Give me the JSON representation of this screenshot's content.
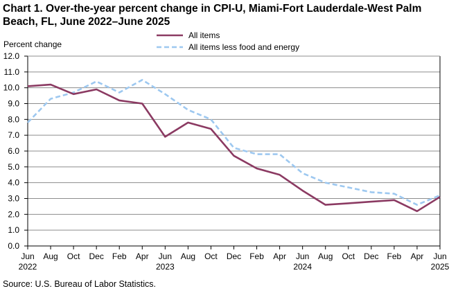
{
  "chart_data": {
    "type": "line",
    "title_line1": "Chart 1. Over-the-year percent change in CPI-U, Miami-Fort Lauderdale-West Palm",
    "title_line2": "Beach, FL, June 2022–June 2025",
    "ylabel": "Percent change",
    "ylim": [
      0,
      12
    ],
    "yticks": [
      "0.0",
      "1.0",
      "2.0",
      "3.0",
      "4.0",
      "5.0",
      "6.0",
      "7.0",
      "8.0",
      "9.0",
      "10.0",
      "11.0",
      "12.0"
    ],
    "x": [
      "Jun 2022",
      "Aug 2022",
      "Oct 2022",
      "Dec 2022",
      "Feb 2023",
      "Apr 2023",
      "Jun 2023",
      "Aug 2023",
      "Oct 2023",
      "Dec 2023",
      "Feb 2024",
      "Apr 2024",
      "Jun 2024",
      "Aug 2024",
      "Oct 2024",
      "Dec 2024",
      "Feb 2025",
      "Apr 2025",
      "Jun 2025"
    ],
    "xtick_months": [
      "Jun",
      "Aug",
      "Oct",
      "Dec",
      "Feb",
      "Apr",
      "Jun",
      "Aug",
      "Oct",
      "Dec",
      "Feb",
      "Apr",
      "Jun",
      "Aug",
      "Oct",
      "Dec",
      "Feb",
      "Apr",
      "Jun"
    ],
    "xtick_years": [
      {
        "index": 0,
        "label": "2022"
      },
      {
        "index": 6,
        "label": "2023"
      },
      {
        "index": 12,
        "label": "2024"
      },
      {
        "index": 18,
        "label": "2025"
      }
    ],
    "series": [
      {
        "name": "All items",
        "color": "#8b3a62",
        "style": "solid",
        "values": [
          10.1,
          10.2,
          9.6,
          9.9,
          9.2,
          9.0,
          6.9,
          7.8,
          7.4,
          5.7,
          4.9,
          4.5,
          3.5,
          2.6,
          2.7,
          2.8,
          2.9,
          2.2,
          3.1
        ]
      },
      {
        "name": "All items less food and energy",
        "color": "#9dc8f0",
        "style": "dashed",
        "values": [
          7.8,
          9.3,
          9.7,
          10.4,
          9.7,
          10.5,
          9.6,
          8.6,
          8.0,
          6.2,
          5.8,
          5.8,
          4.6,
          4.0,
          3.7,
          3.4,
          3.3,
          2.6,
          3.2
        ]
      }
    ],
    "legend_position": "top-center",
    "grid": true
  },
  "source": "Source:  U.S. Bureau  of Labor Statistics."
}
